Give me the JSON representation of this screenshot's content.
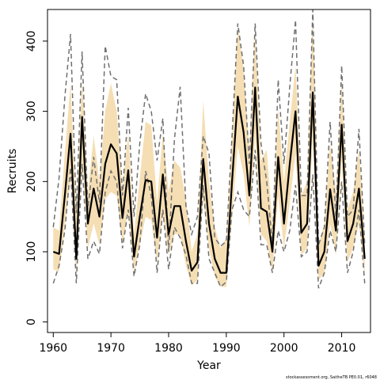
{
  "chart_data": {
    "type": "line",
    "title": "",
    "xlabel": "Year",
    "ylabel": "Recruits",
    "footnote": "stockassessment.org, SaitheTB PE0.01, r6048",
    "xlim": [
      1959,
      2015
    ],
    "ylim": [
      -15,
      445
    ],
    "x_ticks": [
      1960,
      1970,
      1980,
      1990,
      2000,
      2010
    ],
    "y_ticks": [
      0,
      100,
      200,
      300,
      400
    ],
    "colors": {
      "estimate": "#000000",
      "band": "#f5deb3",
      "dashed": "#707070"
    },
    "x": [
      1960,
      1961,
      1962,
      1963,
      1964,
      1965,
      1966,
      1967,
      1968,
      1969,
      1970,
      1971,
      1972,
      1973,
      1974,
      1975,
      1976,
      1977,
      1978,
      1979,
      1980,
      1981,
      1982,
      1983,
      1984,
      1985,
      1986,
      1987,
      1988,
      1989,
      1990,
      1991,
      1992,
      1993,
      1994,
      1995,
      1996,
      1997,
      1998,
      1999,
      2000,
      2001,
      2002,
      2003,
      2004,
      2005,
      2006,
      2007,
      2008,
      2009,
      2010,
      2011,
      2012,
      2013,
      2014
    ],
    "series": [
      {
        "role": "estimate",
        "values": [
          100,
          97,
          180,
          268,
          90,
          292,
          140,
          190,
          150,
          225,
          253,
          240,
          148,
          216,
          93,
          150,
          202,
          200,
          120,
          210,
          125,
          165,
          165,
          115,
          73,
          85,
          232,
          140,
          90,
          70,
          70,
          200,
          321,
          270,
          180,
          334,
          162,
          157,
          100,
          235,
          140,
          225,
          300,
          127,
          140,
          327,
          80,
          100,
          189,
          130,
          281,
          115,
          140,
          190,
          90
        ]
      },
      {
        "role": "band_upper",
        "values": [
          135,
          130,
          240,
          340,
          150,
          345,
          185,
          265,
          200,
          300,
          340,
          300,
          190,
          270,
          125,
          205,
          285,
          280,
          170,
          270,
          185,
          230,
          220,
          175,
          100,
          125,
          315,
          200,
          135,
          105,
          120,
          265,
          420,
          360,
          245,
          415,
          230,
          245,
          140,
          305,
          200,
          285,
          365,
          180,
          200,
          440,
          110,
          140,
          255,
          185,
          345,
          160,
          185,
          245,
          130
        ]
      },
      {
        "role": "band_lower",
        "values": [
          75,
          72,
          135,
          205,
          65,
          230,
          105,
          140,
          110,
          175,
          185,
          180,
          110,
          160,
          70,
          110,
          150,
          145,
          85,
          155,
          95,
          125,
          125,
          80,
          52,
          60,
          175,
          105,
          65,
          50,
          50,
          150,
          250,
          210,
          135,
          265,
          125,
          115,
          70,
          180,
          105,
          170,
          240,
          95,
          105,
          260,
          60,
          70,
          140,
          95,
          230,
          85,
          105,
          140,
          65
        ]
      },
      {
        "role": "dashed_upper",
        "values": [
          135,
          205,
          320,
          410,
          155,
          385,
          160,
          235,
          170,
          393,
          350,
          345,
          180,
          305,
          150,
          255,
          325,
          300,
          230,
          290,
          100,
          260,
          335,
          165,
          125,
          150,
          265,
          240,
          120,
          108,
          115,
          265,
          425,
          365,
          225,
          425,
          255,
          200,
          110,
          345,
          225,
          335,
          430,
          180,
          180,
          445,
          110,
          135,
          285,
          150,
          365,
          150,
          160,
          275,
          110
        ]
      },
      {
        "role": "dashed_lower",
        "values": [
          55,
          80,
          130,
          220,
          55,
          225,
          90,
          115,
          97,
          185,
          215,
          200,
          105,
          160,
          65,
          110,
          215,
          180,
          70,
          160,
          75,
          135,
          120,
          95,
          55,
          55,
          195,
          90,
          70,
          50,
          57,
          160,
          185,
          160,
          150,
          245,
          110,
          110,
          70,
          130,
          100,
          130,
          195,
          93,
          100,
          210,
          48,
          70,
          130,
          100,
          200,
          70,
          100,
          160,
          55
        ]
      }
    ]
  }
}
